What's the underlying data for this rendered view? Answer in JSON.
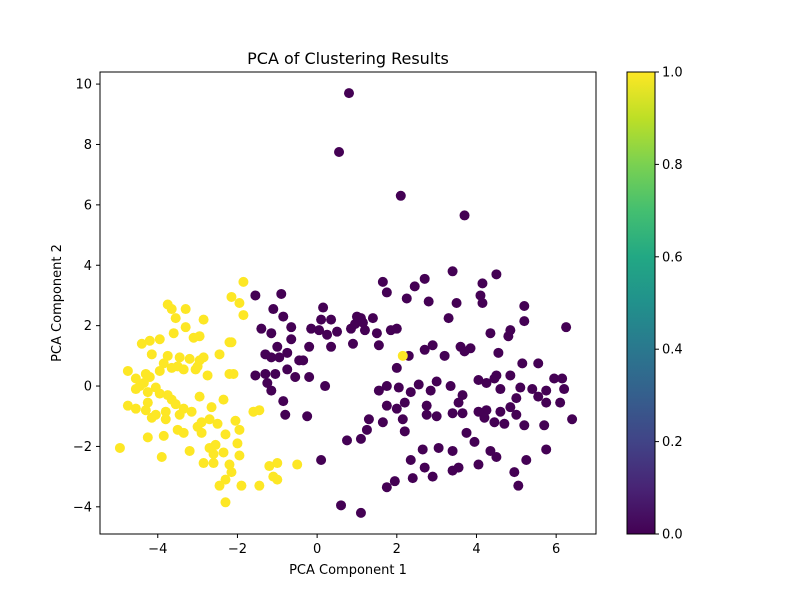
{
  "chart_data": {
    "type": "scatter",
    "title": "PCA of Clustering Results",
    "xlabel": "PCA Component 1",
    "ylabel": "PCA Component 2",
    "xlim": [
      -5.45,
      7.0
    ],
    "ylim": [
      -4.9,
      10.4
    ],
    "xticks": [
      -4,
      -2,
      0,
      2,
      4,
      6
    ],
    "yticks": [
      -4,
      -2,
      0,
      2,
      4,
      6,
      8,
      10
    ],
    "xtick_labels": [
      "−4",
      "−2",
      "0",
      "2",
      "4",
      "6"
    ],
    "ytick_labels": [
      "−4",
      "−2",
      "0",
      "2",
      "4",
      "6",
      "8",
      "10"
    ],
    "grid": false,
    "colormap": "viridis",
    "colorbar": {
      "range": [
        0.0,
        1.0
      ],
      "ticks": [
        0.0,
        0.2,
        0.4,
        0.6,
        0.8,
        1.0
      ],
      "tick_labels": [
        "0.0",
        "0.2",
        "0.4",
        "0.6",
        "0.8",
        "1.0"
      ]
    },
    "colors": {
      "cluster_0": "#440154",
      "cluster_1": "#fde725"
    },
    "series": [
      {
        "cluster_value": 0,
        "points": [
          [
            0.8,
            9.7
          ],
          [
            0.55,
            7.75
          ],
          [
            2.1,
            6.3
          ],
          [
            3.7,
            5.65
          ],
          [
            3.4,
            3.8
          ],
          [
            2.7,
            3.55
          ],
          [
            4.5,
            3.7
          ],
          [
            4.15,
            3.4
          ],
          [
            4.1,
            3.0
          ],
          [
            4.15,
            2.75
          ],
          [
            3.5,
            2.75
          ],
          [
            1.65,
            3.45
          ],
          [
            1.75,
            3.1
          ],
          [
            2.45,
            3.3
          ],
          [
            2.25,
            2.9
          ],
          [
            2.8,
            2.8
          ],
          [
            -1.55,
            3.0
          ],
          [
            -0.9,
            3.05
          ],
          [
            -1.1,
            2.55
          ],
          [
            -0.85,
            2.3
          ],
          [
            0.15,
            2.6
          ],
          [
            0.1,
            2.2
          ],
          [
            0.35,
            2.2
          ],
          [
            -0.15,
            1.9
          ],
          [
            -0.65,
            1.95
          ],
          [
            -0.65,
            1.55
          ],
          [
            -1.4,
            1.9
          ],
          [
            -1.15,
            1.75
          ],
          [
            -1.0,
            1.3
          ],
          [
            -1.3,
            1.05
          ],
          [
            -1.15,
            0.95
          ],
          [
            -0.95,
            0.95
          ],
          [
            -0.75,
            1.1
          ],
          [
            -0.45,
            0.85
          ],
          [
            -0.35,
            0.85
          ],
          [
            -0.2,
            1.3
          ],
          [
            0.05,
            1.85
          ],
          [
            0.25,
            1.7
          ],
          [
            0.35,
            1.3
          ],
          [
            0.5,
            1.8
          ],
          [
            0.85,
            1.9
          ],
          [
            0.95,
            2.05
          ],
          [
            1.1,
            2.25
          ],
          [
            1.0,
            2.3
          ],
          [
            1.4,
            2.25
          ],
          [
            1.2,
            1.85
          ],
          [
            1.5,
            1.75
          ],
          [
            1.85,
            1.85
          ],
          [
            2.0,
            1.9
          ],
          [
            1.55,
            1.35
          ],
          [
            2.3,
            1.0
          ],
          [
            2.7,
            1.2
          ],
          [
            2.9,
            1.35
          ],
          [
            3.2,
            1.0
          ],
          [
            3.3,
            2.25
          ],
          [
            3.6,
            1.3
          ],
          [
            3.85,
            1.25
          ],
          [
            3.7,
            1.15
          ],
          [
            4.35,
            1.75
          ],
          [
            4.55,
            1.1
          ],
          [
            4.8,
            1.65
          ],
          [
            4.85,
            1.85
          ],
          [
            5.2,
            2.65
          ],
          [
            5.2,
            2.15
          ],
          [
            6.25,
            1.95
          ],
          [
            5.15,
            0.75
          ],
          [
            5.55,
            0.75
          ],
          [
            4.85,
            0.35
          ],
          [
            4.45,
            0.25
          ],
          [
            4.5,
            0.35
          ],
          [
            4.25,
            0.1
          ],
          [
            4.05,
            0.2
          ],
          [
            5.1,
            -0.05
          ],
          [
            5.4,
            -0.1
          ],
          [
            5.75,
            -0.15
          ],
          [
            5.95,
            0.25
          ],
          [
            6.15,
            0.25
          ],
          [
            6.2,
            -0.1
          ],
          [
            6.1,
            -0.55
          ],
          [
            6.4,
            -1.1
          ],
          [
            5.75,
            -0.55
          ],
          [
            5.55,
            -0.35
          ],
          [
            5.0,
            -0.4
          ],
          [
            4.6,
            -0.1
          ],
          [
            4.85,
            -0.7
          ],
          [
            5.0,
            -0.95
          ],
          [
            4.6,
            -0.85
          ],
          [
            4.25,
            -0.8
          ],
          [
            4.05,
            -0.85
          ],
          [
            3.65,
            -0.9
          ],
          [
            3.4,
            -0.9
          ],
          [
            3.55,
            -0.55
          ],
          [
            3.65,
            -0.3
          ],
          [
            3.35,
            0.0
          ],
          [
            3.0,
            0.15
          ],
          [
            2.85,
            -0.15
          ],
          [
            2.55,
            0.05
          ],
          [
            2.35,
            -0.2
          ],
          [
            2.05,
            -0.05
          ],
          [
            2.0,
            0.6
          ],
          [
            1.75,
            0.0
          ],
          [
            1.55,
            -0.15
          ],
          [
            1.75,
            -0.65
          ],
          [
            2.2,
            -0.55
          ],
          [
            2.0,
            -0.75
          ],
          [
            2.75,
            -0.65
          ],
          [
            2.75,
            -0.95
          ],
          [
            3.75,
            -1.55
          ],
          [
            3.95,
            -1.85
          ],
          [
            4.35,
            -2.15
          ],
          [
            4.5,
            -2.35
          ],
          [
            4.05,
            -2.6
          ],
          [
            5.25,
            -2.45
          ],
          [
            4.95,
            -2.85
          ],
          [
            5.05,
            -3.3
          ],
          [
            5.75,
            -2.1
          ],
          [
            5.7,
            -1.3
          ],
          [
            5.2,
            -1.3
          ],
          [
            4.7,
            -1.25
          ],
          [
            4.45,
            -1.2
          ],
          [
            4.2,
            -1.05
          ],
          [
            3.0,
            -1.0
          ],
          [
            2.65,
            -2.1
          ],
          [
            3.05,
            -2.05
          ],
          [
            3.4,
            -2.15
          ],
          [
            3.4,
            -2.8
          ],
          [
            3.55,
            -2.7
          ],
          [
            2.7,
            -2.7
          ],
          [
            2.9,
            -3.0
          ],
          [
            2.4,
            -3.05
          ],
          [
            2.35,
            -2.45
          ],
          [
            1.75,
            -3.35
          ],
          [
            1.95,
            -3.15
          ],
          [
            2.2,
            -1.5
          ],
          [
            2.15,
            -1.1
          ],
          [
            1.65,
            -1.2
          ],
          [
            1.3,
            -1.1
          ],
          [
            1.25,
            -1.45
          ],
          [
            1.1,
            -1.75
          ],
          [
            0.75,
            -1.8
          ],
          [
            0.1,
            -2.45
          ],
          [
            1.1,
            -4.2
          ],
          [
            0.6,
            -3.95
          ],
          [
            -0.25,
            -1.0
          ],
          [
            -0.8,
            -0.95
          ],
          [
            -1.15,
            -0.15
          ],
          [
            -1.25,
            0.1
          ],
          [
            -1.55,
            0.35
          ],
          [
            -1.3,
            0.4
          ],
          [
            -1.05,
            0.4
          ],
          [
            -0.75,
            0.55
          ],
          [
            -0.55,
            0.3
          ],
          [
            -0.2,
            0.3
          ],
          [
            0.2,
            0.0
          ],
          [
            -0.85,
            -0.5
          ],
          [
            0.9,
            1.4
          ],
          [
            1.15,
            2.1
          ]
        ]
      },
      {
        "cluster_value": 1,
        "points": [
          [
            -1.85,
            3.45
          ],
          [
            -2.15,
            2.95
          ],
          [
            -1.95,
            2.75
          ],
          [
            -1.85,
            2.35
          ],
          [
            -3.75,
            2.7
          ],
          [
            -3.65,
            2.55
          ],
          [
            -3.3,
            2.55
          ],
          [
            -2.85,
            2.2
          ],
          [
            -3.55,
            2.25
          ],
          [
            -3.3,
            1.95
          ],
          [
            -2.95,
            1.65
          ],
          [
            -3.1,
            1.6
          ],
          [
            -3.6,
            1.75
          ],
          [
            -3.95,
            1.55
          ],
          [
            -4.2,
            1.5
          ],
          [
            -4.4,
            1.4
          ],
          [
            -4.15,
            1.05
          ],
          [
            -3.75,
            1.0
          ],
          [
            -3.45,
            0.95
          ],
          [
            -3.2,
            0.9
          ],
          [
            -2.95,
            0.85
          ],
          [
            -2.85,
            0.95
          ],
          [
            -2.45,
            1.05
          ],
          [
            -2.2,
            1.45
          ],
          [
            -2.15,
            1.45
          ],
          [
            -3.5,
            0.65
          ],
          [
            -3.35,
            0.55
          ],
          [
            -3.05,
            0.55
          ],
          [
            -3.0,
            0.65
          ],
          [
            -3.65,
            0.6
          ],
          [
            -3.85,
            0.75
          ],
          [
            -3.95,
            0.5
          ],
          [
            -4.2,
            0.3
          ],
          [
            -4.3,
            0.4
          ],
          [
            -4.35,
            0.1
          ],
          [
            -4.55,
            0.25
          ],
          [
            -4.75,
            0.5
          ],
          [
            -4.55,
            -0.1
          ],
          [
            -4.45,
            0.0
          ],
          [
            -4.25,
            -0.2
          ],
          [
            -4.05,
            -0.05
          ],
          [
            -3.95,
            -0.25
          ],
          [
            -3.75,
            -0.3
          ],
          [
            -3.65,
            -0.45
          ],
          [
            -4.25,
            -0.55
          ],
          [
            -4.55,
            -0.75
          ],
          [
            -4.3,
            -0.8
          ],
          [
            -4.15,
            -1.05
          ],
          [
            -4.05,
            -0.95
          ],
          [
            -3.8,
            -0.85
          ],
          [
            -3.55,
            -0.6
          ],
          [
            -3.35,
            -0.75
          ],
          [
            -3.45,
            -0.95
          ],
          [
            -3.8,
            -1.1
          ],
          [
            -4.25,
            -1.7
          ],
          [
            -3.85,
            -1.65
          ],
          [
            -3.5,
            -1.45
          ],
          [
            -3.35,
            -1.55
          ],
          [
            -3.2,
            -2.15
          ],
          [
            -3.9,
            -2.35
          ],
          [
            -4.95,
            -2.05
          ],
          [
            -3.0,
            -1.35
          ],
          [
            -2.9,
            -1.2
          ],
          [
            -2.7,
            -1.1
          ],
          [
            -2.65,
            -0.7
          ],
          [
            -2.35,
            -0.45
          ],
          [
            -2.2,
            0.4
          ],
          [
            -2.1,
            0.4
          ],
          [
            -2.05,
            -1.15
          ],
          [
            -1.95,
            -1.45
          ],
          [
            -2.3,
            -1.6
          ],
          [
            -2.55,
            -1.95
          ],
          [
            -2.6,
            -2.25
          ],
          [
            -2.7,
            -2.05
          ],
          [
            -2.35,
            -2.2
          ],
          [
            -2.0,
            -1.9
          ],
          [
            -1.95,
            -2.3
          ],
          [
            -2.2,
            -2.6
          ],
          [
            -2.3,
            -3.1
          ],
          [
            -2.15,
            -2.85
          ],
          [
            -2.6,
            -2.55
          ],
          [
            -2.3,
            -3.85
          ],
          [
            -2.45,
            -3.3
          ],
          [
            -1.9,
            -3.3
          ],
          [
            -1.45,
            -3.3
          ],
          [
            -1.2,
            -2.65
          ],
          [
            -1.0,
            -2.55
          ],
          [
            -1.1,
            -3.0
          ],
          [
            -1.0,
            -3.1
          ],
          [
            -0.5,
            -2.6
          ],
          [
            -1.6,
            -0.85
          ],
          [
            -1.45,
            -0.8
          ],
          [
            -2.75,
            0.35
          ],
          [
            2.15,
            1.0
          ],
          [
            -4.75,
            -0.65
          ],
          [
            -2.95,
            -0.35
          ],
          [
            -2.5,
            -1.25
          ],
          [
            -3.15,
            -0.85
          ],
          [
            -2.9,
            -1.55
          ],
          [
            -2.85,
            -2.55
          ]
        ]
      }
    ]
  }
}
